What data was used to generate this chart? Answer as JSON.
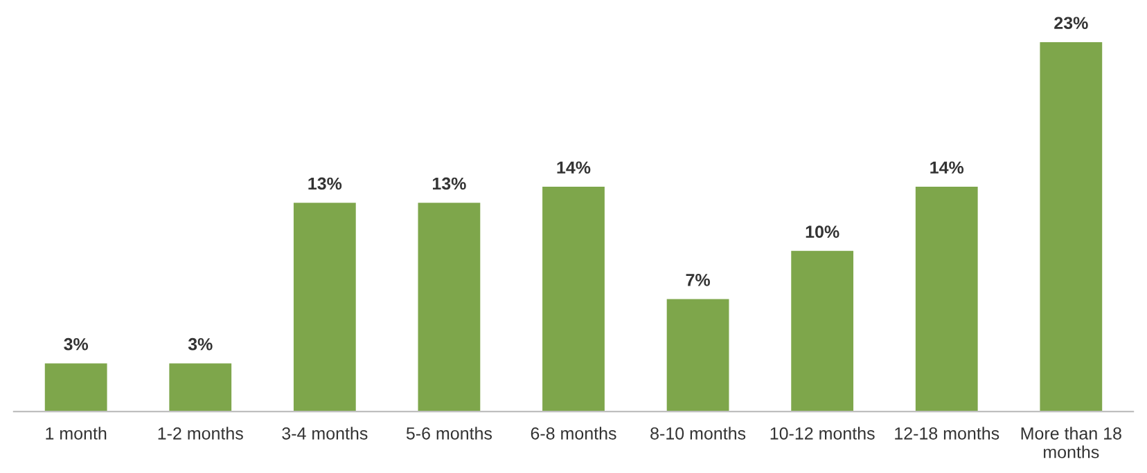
{
  "chart_data": {
    "type": "bar",
    "categories": [
      "1 month",
      "1-2 months",
      "3-4 months",
      "5-6 months",
      "6-8 months",
      "8-10 months",
      "10-12 months",
      "12-18 months",
      "More than 18\nmonths"
    ],
    "values": [
      3,
      3,
      13,
      13,
      14,
      7,
      10,
      14,
      23
    ],
    "value_labels": [
      "3%",
      "3%",
      "13%",
      "13%",
      "14%",
      "7%",
      "10%",
      "14%",
      "23%"
    ],
    "color": "#7ea64b"
  }
}
